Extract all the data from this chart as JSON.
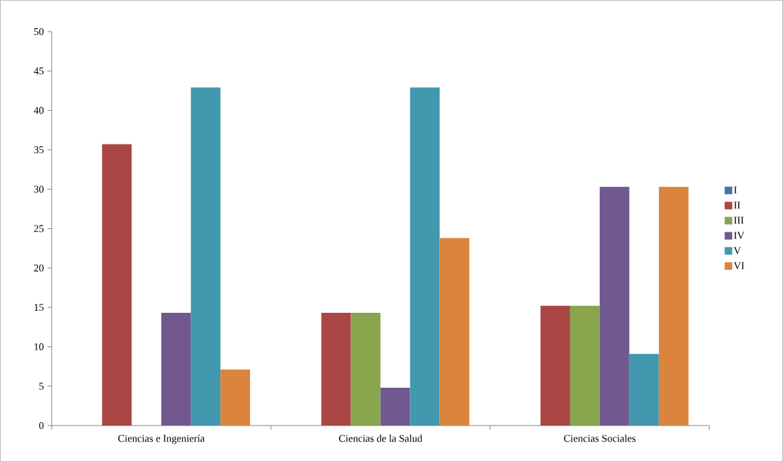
{
  "chart_data": {
    "type": "bar",
    "categories": [
      "Ciencias e Ingeniería",
      "Ciencias de la Salud",
      "Ciencias Sociales"
    ],
    "series": [
      {
        "name": "I",
        "color": "#4573a7",
        "values": [
          0,
          0,
          0
        ]
      },
      {
        "name": "II",
        "color": "#aa4644",
        "values": [
          35.7,
          14.3,
          15.2
        ]
      },
      {
        "name": "III",
        "color": "#89a54e",
        "values": [
          0,
          14.3,
          15.2
        ]
      },
      {
        "name": "IV",
        "color": "#71588f",
        "values": [
          14.3,
          4.8,
          30.3
        ]
      },
      {
        "name": "V",
        "color": "#4298af",
        "values": [
          42.9,
          42.9,
          9.1
        ]
      },
      {
        "name": "VI",
        "color": "#db843d",
        "values": [
          7.1,
          23.8,
          30.3
        ]
      }
    ],
    "ylim": [
      0,
      50
    ],
    "yticks": [
      0,
      5,
      10,
      15,
      20,
      25,
      30,
      35,
      40,
      45,
      50
    ],
    "grid": false,
    "legend": "right"
  }
}
